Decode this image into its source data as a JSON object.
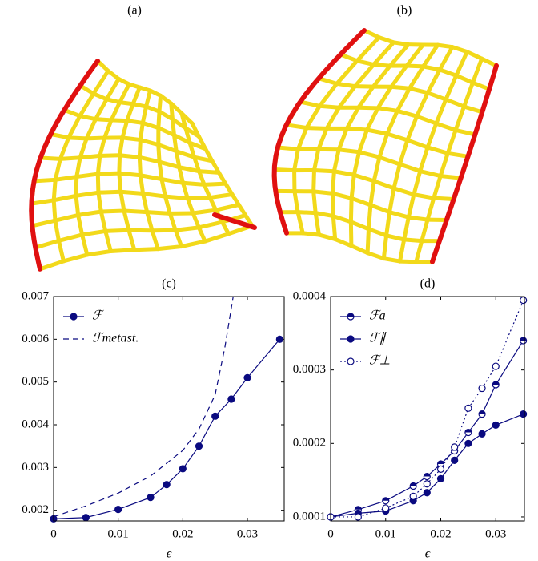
{
  "images": [
    {
      "label": "(a)"
    },
    {
      "label": "(b)"
    }
  ],
  "chart_data": [
    {
      "type": "line",
      "title": "(c)",
      "xlabel": "ϵ",
      "xlim": [
        0,
        0.0357
      ],
      "xticks": [
        0,
        0.01,
        0.02,
        0.03
      ],
      "ylim": [
        0.00175,
        0.007
      ],
      "yticks": [
        0.002,
        0.003,
        0.004,
        0.005,
        0.006,
        0.007
      ],
      "legend": "upper left",
      "series": [
        {
          "name": "ℱ",
          "color": "#0a0a80",
          "marker": "filled",
          "dash": "solid",
          "x": [
            0,
            0.005,
            0.01,
            0.015,
            0.0175,
            0.02,
            0.0225,
            0.025,
            0.0275,
            0.03,
            0.035
          ],
          "values": [
            0.0018,
            0.00183,
            0.00202,
            0.0023,
            0.0026,
            0.00297,
            0.0035,
            0.0042,
            0.0046,
            0.0051,
            0.006
          ]
        },
        {
          "name": "ℱmetast.",
          "color": "#0a0a80",
          "marker": "none",
          "dash": "dashed",
          "x": [
            0,
            0.005,
            0.01,
            0.015,
            0.02,
            0.0225,
            0.025,
            0.0265,
            0.0278
          ],
          "values": [
            0.00185,
            0.0021,
            0.0024,
            0.0028,
            0.0034,
            0.0039,
            0.0047,
            0.0058,
            0.007
          ]
        }
      ]
    },
    {
      "type": "line",
      "title": "(d)",
      "xlabel": "ϵ",
      "xlim": [
        0,
        0.0352
      ],
      "xticks": [
        0,
        0.01,
        0.02,
        0.03
      ],
      "ylim": [
        9.45e-05,
        0.0004
      ],
      "yticks": [
        0.0001,
        0.0002,
        0.0003,
        0.0004
      ],
      "legend": "upper left",
      "x": [
        0,
        0.005,
        0.01,
        0.015,
        0.0175,
        0.02,
        0.0225,
        0.025,
        0.0275,
        0.03,
        0.035
      ],
      "series": [
        {
          "name": "ℱa",
          "color": "#0a0a80",
          "marker": "half",
          "dash": "solid",
          "values": [
            0.0001,
            0.00011,
            0.000122,
            0.000142,
            0.000155,
            0.000172,
            0.00019,
            0.000215,
            0.00024,
            0.00028,
            0.00034
          ]
        },
        {
          "name": "ℱ∥",
          "color": "#0a0a80",
          "marker": "filled",
          "dash": "solid",
          "values": [
            0.0001,
            0.000105,
            0.000108,
            0.000122,
            0.000133,
            0.000152,
            0.000177,
            0.0002,
            0.000213,
            0.000225,
            0.00024
          ]
        },
        {
          "name": "ℱ⊥",
          "color": "#0a0a80",
          "marker": "open",
          "dash": "dotted",
          "values": [
            0.0001,
            0.0001,
            0.000112,
            0.000128,
            0.000145,
            0.000165,
            0.000195,
            0.000248,
            0.000275,
            0.000305,
            0.000395
          ]
        }
      ]
    }
  ]
}
